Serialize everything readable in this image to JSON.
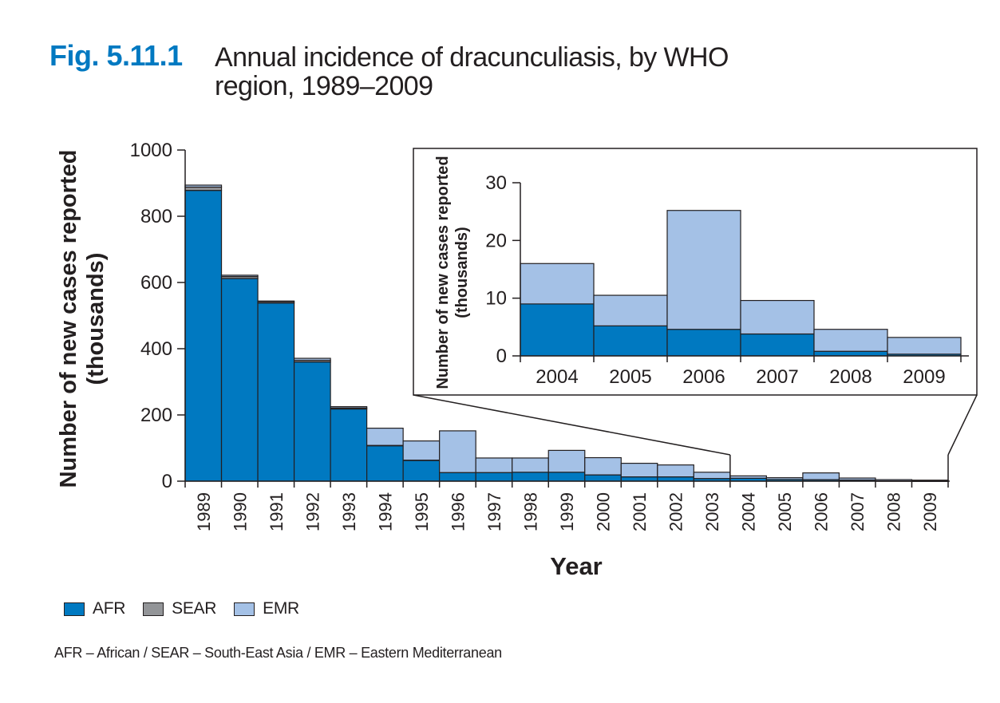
{
  "figure": {
    "label": "Fig. 5.11.1",
    "title": "Annual incidence of dracunculiasis, by WHO region, 1989–2009"
  },
  "colors": {
    "AFR": "#0079c1",
    "SEAR": "#939598",
    "EMR": "#a4c1e6",
    "axis": "#231f20"
  },
  "chart_data": [
    {
      "type": "bar",
      "stacked": true,
      "categories": [
        "1989",
        "1990",
        "1991",
        "1992",
        "1993",
        "1994",
        "1995",
        "1996",
        "1997",
        "1998",
        "1999",
        "2000",
        "2001",
        "2002",
        "2003",
        "2004",
        "2005",
        "2006",
        "2007",
        "2008",
        "2009"
      ],
      "series": [
        {
          "name": "AFR",
          "values": [
            878,
            612,
            538,
            360,
            218,
            107,
            63,
            26,
            26,
            27,
            27,
            19,
            13,
            13,
            8,
            9,
            5,
            4.5,
            3.5,
            0.8,
            0.3
          ]
        },
        {
          "name": "SEAR",
          "values": [
            10,
            6,
            4,
            5,
            3,
            1,
            0.5,
            0,
            0,
            0,
            0,
            0,
            0,
            0,
            0,
            0,
            0,
            0,
            0,
            0,
            0
          ]
        },
        {
          "name": "EMR",
          "values": [
            6,
            4,
            2,
            6,
            4,
            52,
            58,
            126,
            44,
            43,
            66,
            52,
            41,
            36,
            19,
            7,
            5.5,
            20.5,
            6,
            3.8,
            2.8
          ]
        }
      ],
      "xlabel": "Year",
      "ylabel": "Number of new cases reported (thousands)",
      "ylim": [
        0,
        1000
      ],
      "yticks": [
        0,
        200,
        400,
        600,
        800,
        1000
      ],
      "grid": false,
      "legend": "bottom-left"
    },
    {
      "type": "bar",
      "stacked": true,
      "inset": true,
      "categories": [
        "2004",
        "2005",
        "2006",
        "2007",
        "2008",
        "2009"
      ],
      "series": [
        {
          "name": "AFR",
          "values": [
            9,
            5.2,
            4.6,
            3.8,
            0.8,
            0.3
          ]
        },
        {
          "name": "EMR",
          "values": [
            7,
            5.3,
            20.6,
            5.8,
            3.8,
            2.9
          ]
        }
      ],
      "ylabel": "Number of new cases reported (thousands)",
      "ylim": [
        0,
        30
      ],
      "yticks": [
        0,
        10,
        20,
        30
      ],
      "grid": false
    }
  ],
  "legend": [
    {
      "key": "AFR",
      "label": "AFR"
    },
    {
      "key": "SEAR",
      "label": "SEAR"
    },
    {
      "key": "EMR",
      "label": "EMR"
    }
  ],
  "footnote": "AFR – African / SEAR – South-East Asia / EMR – Eastern Mediterranean"
}
